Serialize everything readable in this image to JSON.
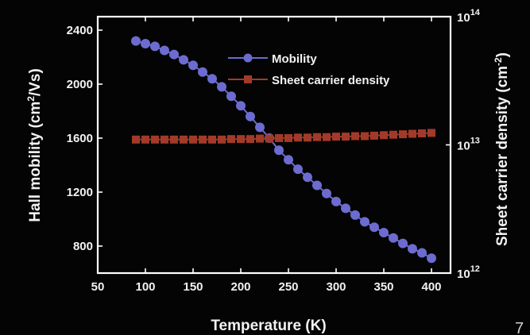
{
  "chart_data": {
    "type": "line",
    "xlabel": "Temperature (K)",
    "ylabel": {
      "base": "Hall mobility (cm",
      "sup": "2",
      "rest": "/Vs)"
    },
    "y2label": {
      "base": "Sheet carrier density (cm",
      "sup": "-2",
      "rest": ")"
    },
    "xlim": [
      50,
      420
    ],
    "xticks": [
      50,
      100,
      150,
      200,
      250,
      300,
      350,
      400
    ],
    "ylim": [
      600,
      2500
    ],
    "yticks": [
      800,
      1200,
      1600,
      2000,
      2400
    ],
    "y2lim": [
      1000000000000.0,
      100000000000000.0
    ],
    "y2scale": "log",
    "y2ticks": [
      {
        "base": "10",
        "exp": "12"
      },
      {
        "base": "10",
        "exp": "13"
      },
      {
        "base": "10",
        "exp": "14"
      }
    ],
    "legend_position": "top-right",
    "x": [
      90,
      100,
      110,
      120,
      130,
      140,
      150,
      160,
      170,
      180,
      190,
      200,
      210,
      220,
      230,
      240,
      250,
      260,
      270,
      280,
      290,
      300,
      310,
      320,
      330,
      340,
      350,
      360,
      370,
      380,
      390,
      400
    ],
    "series": [
      {
        "name": "Mobility",
        "axis": "left",
        "color": "#6c6cd0",
        "marker": "circle",
        "values": [
          2320,
          2300,
          2280,
          2250,
          2220,
          2180,
          2140,
          2090,
          2040,
          1980,
          1910,
          1840,
          1760,
          1680,
          1600,
          1510,
          1440,
          1370,
          1310,
          1250,
          1190,
          1130,
          1080,
          1030,
          980,
          940,
          900,
          860,
          820,
          780,
          750,
          710
        ]
      },
      {
        "name": "Sheet carrier density",
        "axis": "right",
        "color": "#a23a2a",
        "marker": "square",
        "values": [
          11000000000000.0,
          11000000000000.0,
          11000000000000.0,
          11000000000000.0,
          11000000000000.0,
          11000000000000.0,
          11000000000000.0,
          11000000000000.0,
          11000000000000.0,
          11000000000000.0,
          11100000000000.0,
          11100000000000.0,
          11100000000000.0,
          11200000000000.0,
          11200000000000.0,
          11300000000000.0,
          11300000000000.0,
          11400000000000.0,
          11400000000000.0,
          11500000000000.0,
          11500000000000.0,
          11600000000000.0,
          11600000000000.0,
          11700000000000.0,
          11700000000000.0,
          11800000000000.0,
          11900000000000.0,
          12000000000000.0,
          12100000000000.0,
          12200000000000.0,
          12300000000000.0,
          12400000000000.0
        ]
      }
    ]
  },
  "slide": {
    "page_number": "7"
  },
  "colors": {
    "background": "#040404",
    "axes": "#ffffff",
    "text": "#f2f2f2"
  }
}
